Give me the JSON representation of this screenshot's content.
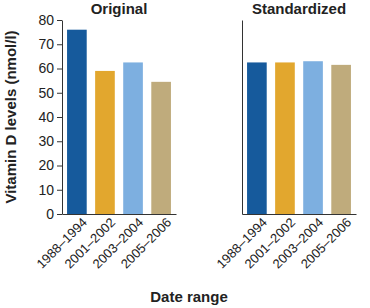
{
  "chart_data": [
    {
      "type": "bar",
      "title": "Original",
      "categories": [
        "1988–1994",
        "2001–2002",
        "2003–2004",
        "2005–2006"
      ],
      "values": [
        76,
        59,
        62.5,
        54.5
      ],
      "colors": [
        "#165a9c",
        "#e2a72e",
        "#7dafe0",
        "#bfab7c"
      ],
      "ylim": [
        0,
        80
      ],
      "yticks": [
        0,
        10,
        20,
        30,
        40,
        50,
        60,
        70,
        80
      ],
      "ylabel": "Vitamin D levels (nmol/l)",
      "xlabel": "Date range"
    },
    {
      "type": "bar",
      "title": "Standardized",
      "categories": [
        "1988–1994",
        "2001–2002",
        "2003–2004",
        "2005–2006"
      ],
      "values": [
        62.5,
        62.5,
        63,
        61.5
      ],
      "colors": [
        "#165a9c",
        "#e2a72e",
        "#7dafe0",
        "#bfab7c"
      ],
      "ylim": [
        0,
        80
      ],
      "tick_labels": "x"
    }
  ]
}
